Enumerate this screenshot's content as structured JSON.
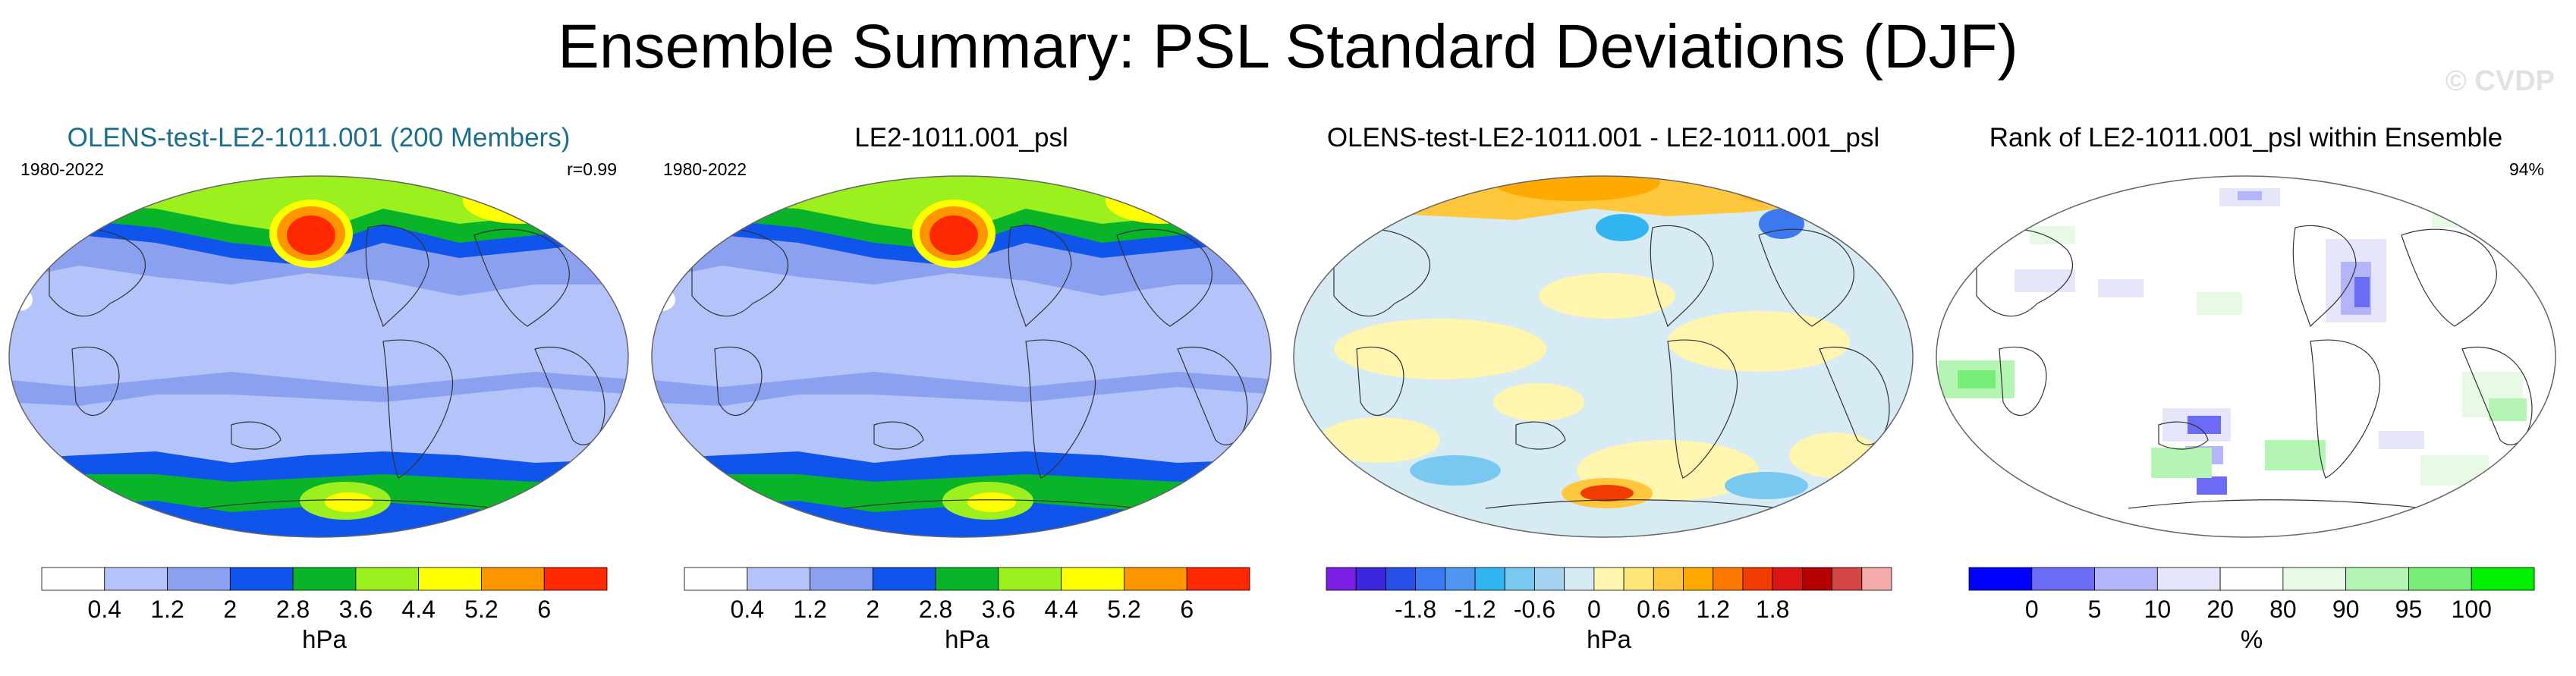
{
  "page": {
    "title": "Ensemble Summary: PSL Standard Deviations (DJF)",
    "watermark": "© CVDP"
  },
  "chart_data": [
    {
      "type": "heatmap",
      "title": "OLENS-test-LE2-1011.001 (200 Members)",
      "period": "1980-2022",
      "annotation": "r=0.99",
      "colorbar": {
        "colors": [
          "#ffffff",
          "#b4c3fa",
          "#8ca0f0",
          "#0f55eb",
          "#0ab428",
          "#9bf01e",
          "#ffff00",
          "#ff9600",
          "#ff2800"
        ],
        "tick_labels": [
          "0.4",
          "1.2",
          "2",
          "2.8",
          "3.6",
          "4.4",
          "5.2",
          "6"
        ],
        "units": "hPa"
      }
    },
    {
      "type": "heatmap",
      "title": "LE2-1011.001_psl",
      "period": "1980-2022",
      "colorbar": {
        "colors": [
          "#ffffff",
          "#b4c3fa",
          "#8ca0f0",
          "#0f55eb",
          "#0ab428",
          "#9bf01e",
          "#ffff00",
          "#ff9600",
          "#ff2800"
        ],
        "tick_labels": [
          "0.4",
          "1.2",
          "2",
          "2.8",
          "3.6",
          "4.4",
          "5.2",
          "6"
        ],
        "units": "hPa"
      }
    },
    {
      "type": "heatmap",
      "title": "OLENS-test-LE2-1011.001 - LE2-1011.001_psl",
      "colorbar": {
        "colors": [
          "#7a1ee6",
          "#3c28dc",
          "#2850e6",
          "#3c78f0",
          "#5096f0",
          "#32b4f0",
          "#78c8f0",
          "#a5d2f0",
          "#d7ebf5",
          "#fff5af",
          "#ffe678",
          "#ffc83c",
          "#ffaa00",
          "#ff7800",
          "#f03c00",
          "#dc1414",
          "#b40000",
          "#d24646",
          "#f5aaaa"
        ],
        "tick_labels": [
          "-1.8",
          "-1.2",
          "-0.6",
          "0",
          "0.6",
          "1.2",
          "1.8"
        ],
        "units": "hPa"
      }
    },
    {
      "type": "heatmap",
      "title": "Rank of LE2-1011.001_psl within Ensemble",
      "annotation": "94%",
      "colorbar": {
        "colors": [
          "#0000ff",
          "#6b6bf5",
          "#b4b4fa",
          "#e6e6fa",
          "#ffffff",
          "#e6fae6",
          "#b4f5b4",
          "#78ee78",
          "#00f000"
        ],
        "tick_labels": [
          "0",
          "5",
          "10",
          "20",
          "80",
          "90",
          "95",
          "100"
        ],
        "units": "%"
      }
    }
  ]
}
